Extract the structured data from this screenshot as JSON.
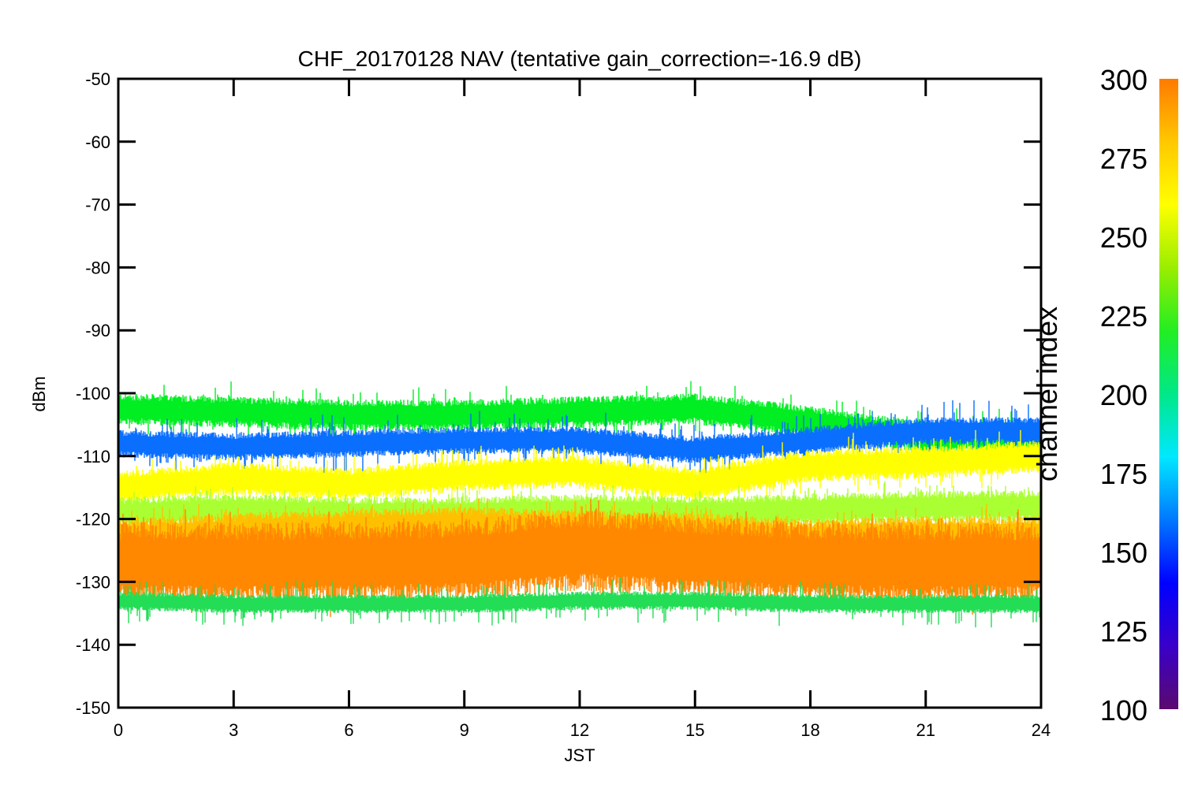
{
  "chart_data": {
    "type": "line",
    "title": "CHF_20170128 NAV (tentative gain_correction=-16.9 dB)",
    "xlabel": "JST",
    "ylabel": "dBm",
    "xlim": [
      0,
      24
    ],
    "ylim": [
      -150,
      -50
    ],
    "x_ticks": [
      "0",
      "3",
      "6",
      "9",
      "12",
      "15",
      "18",
      "21",
      "24"
    ],
    "y_ticks": [
      "-50",
      "-60",
      "-70",
      "-80",
      "-90",
      "-100",
      "-110",
      "-120",
      "-130",
      "-140",
      "-150"
    ],
    "grid": false,
    "colorbar": {
      "label": "channel index",
      "range": [
        100,
        300
      ],
      "ticks": [
        "300",
        "275",
        "250",
        "225",
        "200",
        "175",
        "150",
        "125",
        "100"
      ],
      "colors": [
        "#5b0a6e",
        "#3a00c8",
        "#0000ff",
        "#0078ff",
        "#00e8ff",
        "#00e888",
        "#22ee22",
        "#9aee00",
        "#ffff00",
        "#ffc800",
        "#ff7a00"
      ]
    },
    "x_anchor_hours": [
      0,
      3,
      6,
      9,
      12,
      15,
      18,
      21,
      24
    ],
    "series": [
      {
        "color": "#00ee22",
        "channel_index": 225,
        "center": [
          -102.5,
          -103,
          -103.5,
          -103.5,
          -103,
          -102.5,
          -104.5,
          -107,
          -107
        ],
        "half_width": 2.5,
        "spike_amp": 2.5
      },
      {
        "color": "#0a6eff",
        "channel_index": 150,
        "center": [
          -108,
          -108.5,
          -108,
          -107.5,
          -107.5,
          -109,
          -107.5,
          -106,
          -106
        ],
        "half_width": 2.2,
        "spike_amp": 3
      },
      {
        "color": "#ffff00",
        "channel_index": 275,
        "center": [
          -115,
          -113.5,
          -114.5,
          -113,
          -112.5,
          -114.5,
          -111.5,
          -111,
          -110
        ],
        "half_width": 2.6,
        "spike_amp": 2.5
      },
      {
        "color": "#aaff33",
        "channel_index": 250,
        "center": [
          -119,
          -118.5,
          -119,
          -119,
          -118.5,
          -119,
          -118.5,
          -118,
          -118
        ],
        "half_width": 2.5,
        "spike_amp": 2
      },
      {
        "color": "#ffc000",
        "channel_index": 287,
        "center": [
          -123,
          -122,
          -121.5,
          -121,
          -121.5,
          -122,
          -123,
          -122.5,
          -122.5
        ],
        "half_width": 3,
        "spike_amp": 2
      },
      {
        "color": "#ff8800",
        "channel_index": 300,
        "center": [
          -127,
          -127,
          -127,
          -126.5,
          -125,
          -126,
          -127,
          -127,
          -127
        ],
        "half_width": 6.5,
        "spike_amp": 2.5
      },
      {
        "color": "#22dd55",
        "channel_index": 210,
        "center": [
          -133,
          -133.5,
          -133.5,
          -133.5,
          -133,
          -133,
          -133.5,
          -133.5,
          -133.5
        ],
        "half_width": 1.5,
        "spike_amp": 2.5
      }
    ]
  }
}
